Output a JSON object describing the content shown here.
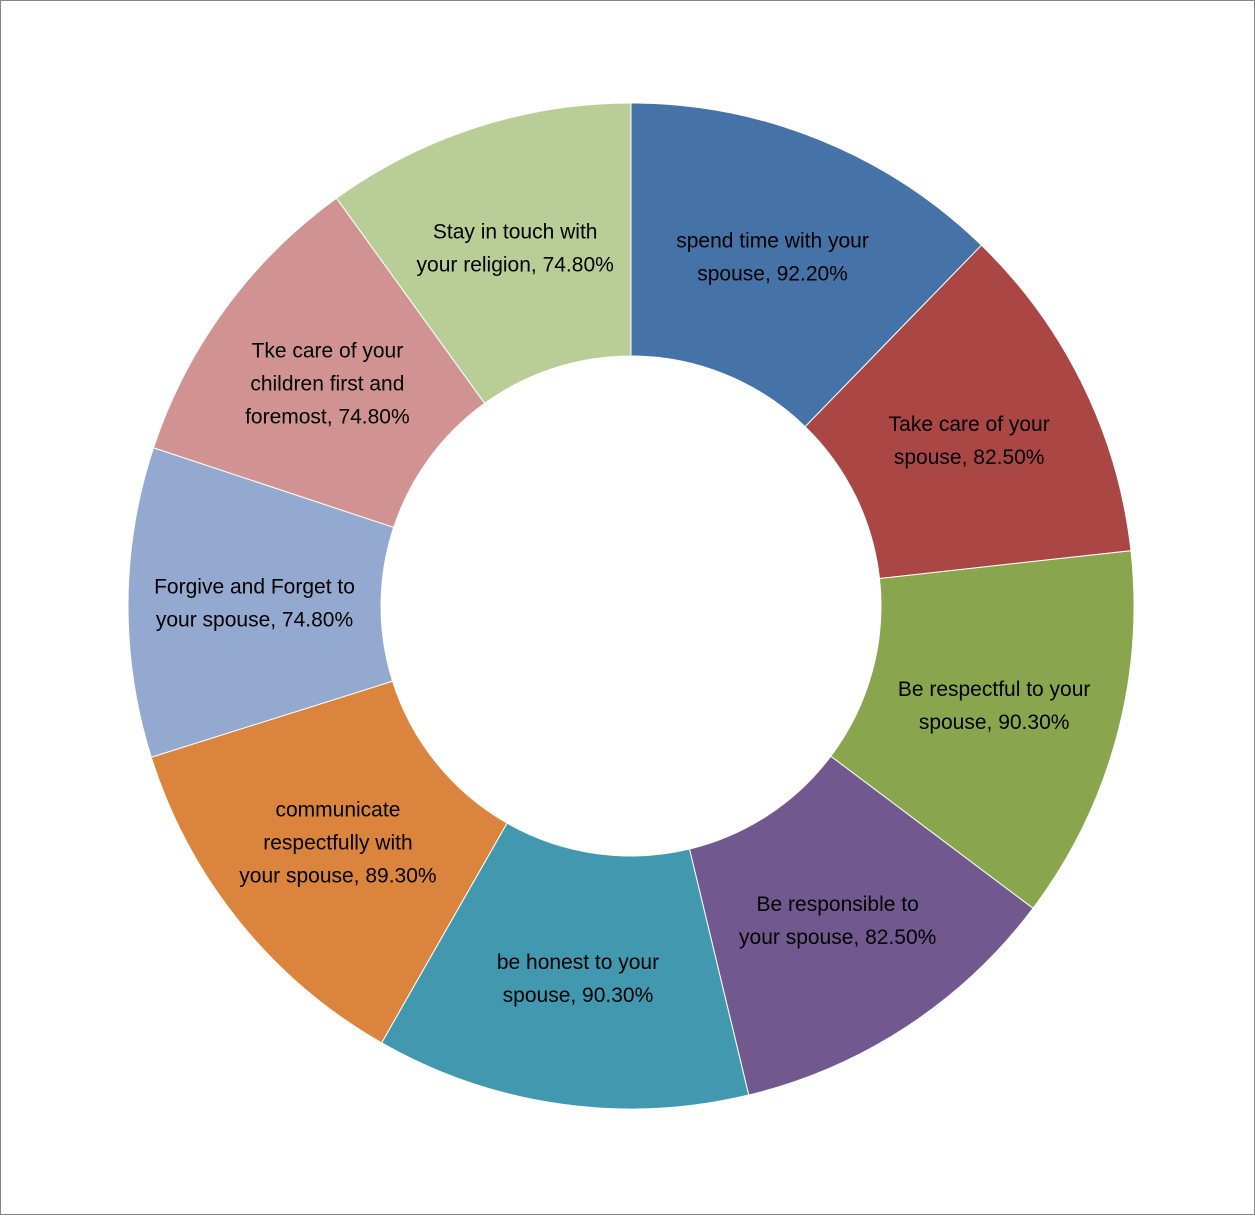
{
  "chart_data": {
    "type": "doughnut",
    "title": "",
    "legend": "none",
    "slices": [
      {
        "label": "spend time with your spouse",
        "value": 92.2,
        "display": "92.20%",
        "color": "#4572A7",
        "label_lines": [
          "spend time with your",
          "spouse, 92.20%"
        ]
      },
      {
        "label": "Take care of your spouse",
        "value": 82.5,
        "display": "82.50%",
        "color": "#AA4643",
        "label_lines": [
          "Take care of your",
          "spouse, 82.50%"
        ]
      },
      {
        "label": "Be respectful to your spouse",
        "value": 90.3,
        "display": "90.30%",
        "color": "#89A54E",
        "label_lines": [
          "Be respectful to your",
          "spouse, 90.30%"
        ]
      },
      {
        "label": "Be responsible to your spouse",
        "value": 82.5,
        "display": "82.50%",
        "color": "#71588F",
        "label_lines": [
          "Be responsible to",
          "your spouse, 82.50%"
        ]
      },
      {
        "label": "be honest to your spouse",
        "value": 90.3,
        "display": "90.30%",
        "color": "#4198AF",
        "label_lines": [
          "be honest to your",
          "spouse, 90.30%"
        ]
      },
      {
        "label": "communicate respectfully with your spouse",
        "value": 89.3,
        "display": "89.30%",
        "color": "#DB843D",
        "label_lines": [
          "communicate",
          "respectfully with",
          "your spouse, 89.30%"
        ]
      },
      {
        "label": "Forgive and Forget to your spouse",
        "value": 74.8,
        "display": "74.80%",
        "color": "#93A9CF",
        "label_lines": [
          "Forgive and Forget to",
          "your spouse, 74.80%"
        ]
      },
      {
        "label": "Tke care of your children first and foremost",
        "value": 74.8,
        "display": "74.80%",
        "color": "#D19392",
        "label_lines": [
          "Tke care of your",
          "children first and",
          "foremost, 74.80%"
        ]
      },
      {
        "label": "Stay in touch with your religion",
        "value": 74.8,
        "display": "74.80%",
        "color": "#B9CD96",
        "label_lines": [
          "Stay in touch with",
          "your religion, 74.80%"
        ]
      }
    ]
  }
}
